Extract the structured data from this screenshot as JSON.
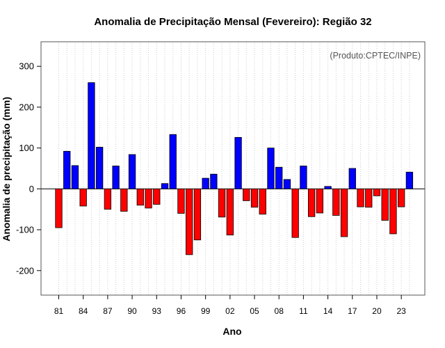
{
  "chart_data": {
    "type": "bar",
    "title": "Anomalia de Precipitação Mensal (Fevereiro): Região 32",
    "xlabel": "Ano",
    "ylabel": "Anomalia de precipitação (mm)",
    "annotation": "(Produto:CPTEC/INPE)",
    "ylim": [
      -260,
      360
    ],
    "yticks": [
      -200,
      -100,
      0,
      100,
      200,
      300
    ],
    "grid": "vertical dotted",
    "colors": {
      "positive": "#0000ff",
      "negative": "#ff0000",
      "outline": "#000000"
    },
    "categories": [
      "81",
      "82",
      "83",
      "84",
      "85",
      "86",
      "87",
      "88",
      "89",
      "90",
      "91",
      "92",
      "93",
      "94",
      "95",
      "96",
      "97",
      "98",
      "99",
      "00",
      "01",
      "02",
      "03",
      "04",
      "05",
      "06",
      "07",
      "08",
      "09",
      "10",
      "11",
      "12",
      "13",
      "14",
      "15",
      "16",
      "17",
      "18",
      "19",
      "20",
      "21",
      "22",
      "23",
      "24"
    ],
    "values": [
      -95,
      92,
      57,
      -42,
      260,
      102,
      -50,
      56,
      -55,
      84,
      -40,
      -47,
      -38,
      13,
      133,
      -60,
      -161,
      -125,
      26,
      36,
      -69,
      -113,
      126,
      -29,
      -45,
      -62,
      100,
      53,
      23,
      -119,
      56,
      -68,
      -59,
      6,
      -65,
      -117,
      50,
      -44,
      -45,
      -17,
      -77,
      -110,
      -44,
      41
    ],
    "tick_labels": [
      "81",
      "84",
      "87",
      "90",
      "93",
      "96",
      "99",
      "02",
      "05",
      "08",
      "11",
      "14",
      "17",
      "20",
      "23"
    ]
  }
}
